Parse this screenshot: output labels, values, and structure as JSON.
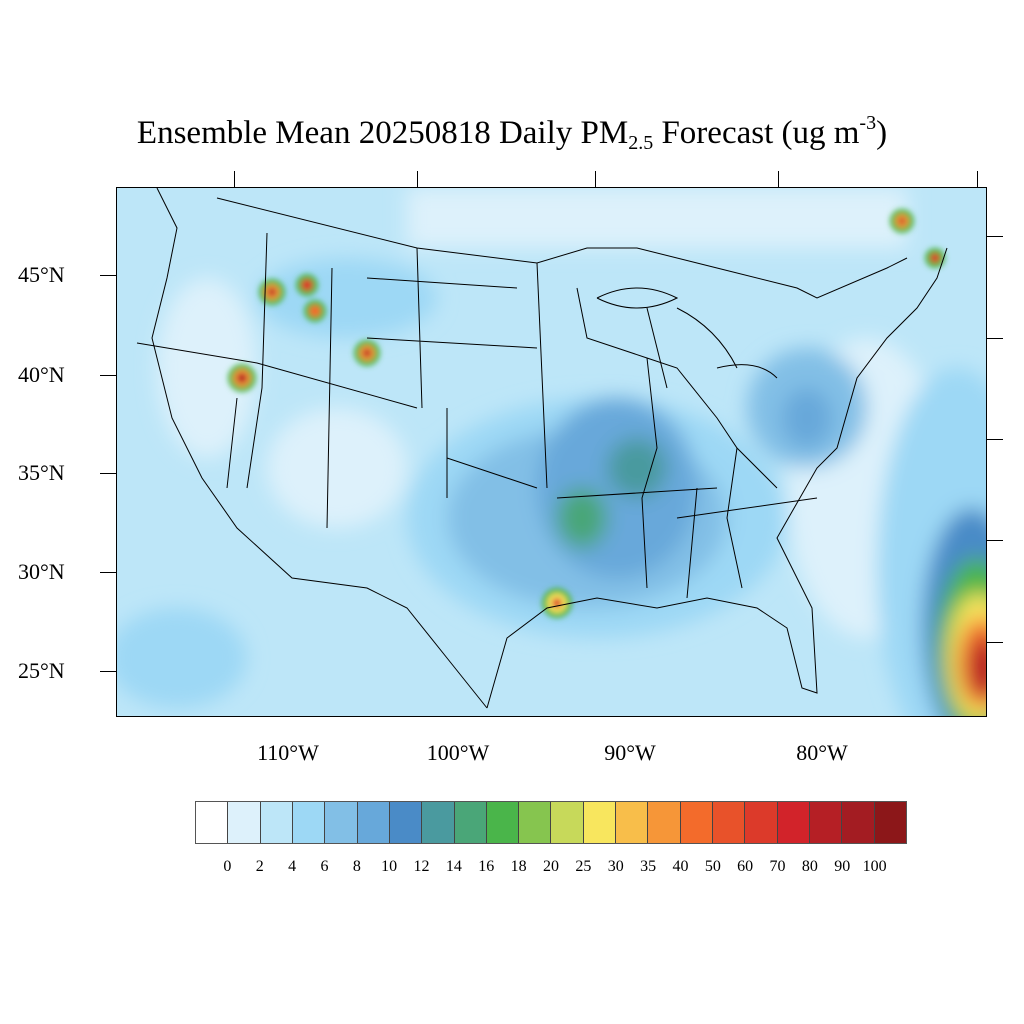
{
  "title": {
    "main": "Ensemble Mean 20250818 Daily PM",
    "sub": "2.5",
    "rest": " Forecast (ug m",
    "sup": "-3",
    "end": ")"
  },
  "lat_labels": [
    "45°N",
    "40°N",
    "35°N",
    "30°N",
    "25°N"
  ],
  "lon_labels": [
    "110°W",
    "100°W",
    "90°W",
    "80°W"
  ],
  "colorbar": {
    "levels": [
      "0",
      "2",
      "4",
      "6",
      "8",
      "10",
      "12",
      "14",
      "16",
      "18",
      "20",
      "25",
      "30",
      "35",
      "40",
      "50",
      "60",
      "70",
      "80",
      "90",
      "100"
    ],
    "colors": [
      "#ffffff",
      "#ddf1fb",
      "#bde6f8",
      "#9dd8f5",
      "#82bfe6",
      "#67a8da",
      "#4a8bc7",
      "#4a9a9f",
      "#4aa678",
      "#4ab54a",
      "#86c54f",
      "#c7d95a",
      "#f8e65e",
      "#f8be4a",
      "#f69638",
      "#f36b2b",
      "#e8522a",
      "#dc3a2a",
      "#d2232a",
      "#b51f25",
      "#a31c22",
      "#8c1719"
    ]
  }
}
